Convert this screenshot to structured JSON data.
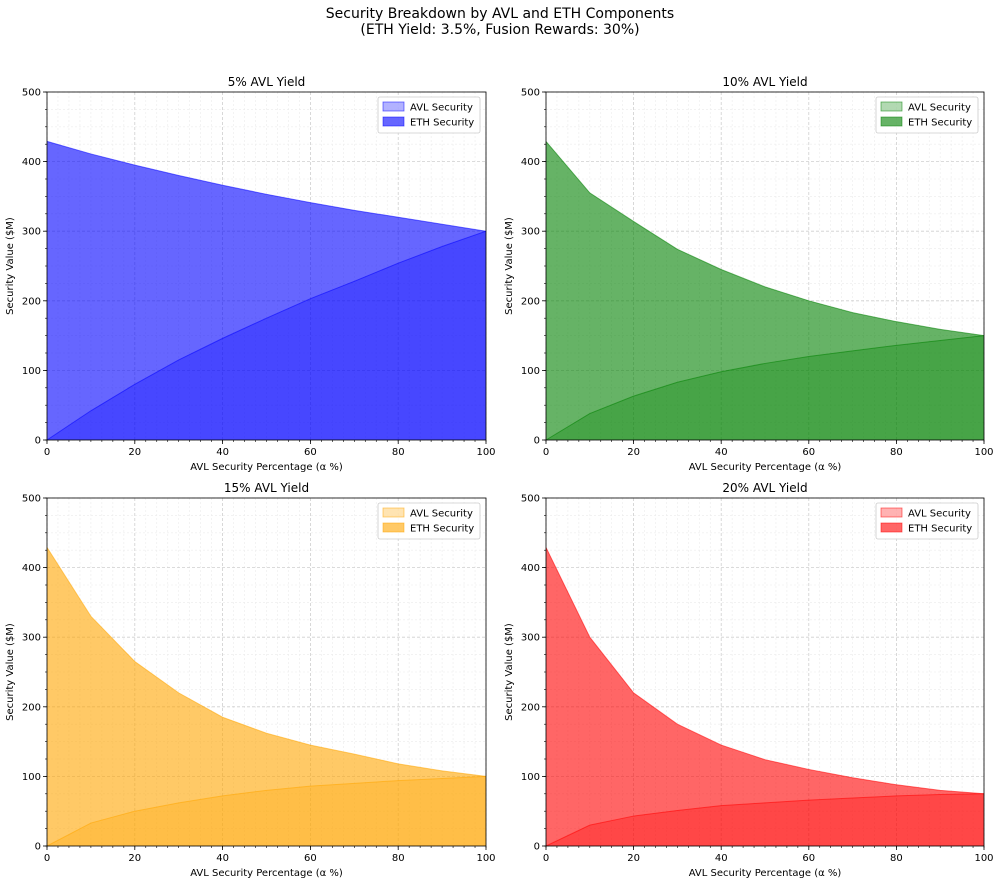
{
  "figure": {
    "title_line1": "Security Breakdown by AVL and ETH Components",
    "title_line2": "(ETH Yield: 3.5%, Fusion Rewards: 30%)"
  },
  "chart_data": [
    {
      "type": "area",
      "title": "5% AVL Yield",
      "xlabel": "AVL Security Percentage (α %)",
      "ylabel": "Security Value ($M)",
      "xlim": [
        0,
        100
      ],
      "ylim": [
        0,
        500
      ],
      "xticks": [
        0,
        20,
        40,
        60,
        80,
        100
      ],
      "yticks": [
        0,
        100,
        200,
        300,
        400,
        500
      ],
      "grid": true,
      "legend_position": "top-right",
      "stacked": false,
      "x": [
        0,
        10,
        20,
        30,
        40,
        50,
        60,
        70,
        80,
        90,
        100
      ],
      "series": [
        {
          "name": "AVL Security",
          "color": "#0000ff",
          "opacity": 0.3,
          "values": [
            0,
            42,
            80,
            115,
            146,
            175,
            203,
            228,
            254,
            278,
            300
          ]
        },
        {
          "name": "ETH Security",
          "color": "#0000ff",
          "opacity": 0.6,
          "values": [
            429,
            411,
            395,
            380,
            366,
            353,
            341,
            330,
            320,
            310,
            300
          ]
        }
      ]
    },
    {
      "type": "area",
      "title": "10% AVL Yield",
      "xlabel": "AVL Security Percentage (α %)",
      "ylabel": "Security Value ($M)",
      "xlim": [
        0,
        100
      ],
      "ylim": [
        0,
        500
      ],
      "xticks": [
        0,
        20,
        40,
        60,
        80,
        100
      ],
      "yticks": [
        0,
        100,
        200,
        300,
        400,
        500
      ],
      "grid": true,
      "legend_position": "top-right",
      "stacked": false,
      "x": [
        0,
        10,
        20,
        30,
        40,
        50,
        60,
        70,
        80,
        90,
        100
      ],
      "series": [
        {
          "name": "AVL Security",
          "color": "#008000",
          "opacity": 0.3,
          "values": [
            0,
            38,
            63,
            83,
            98,
            110,
            120,
            128,
            136,
            143,
            150
          ]
        },
        {
          "name": "ETH Security",
          "color": "#008000",
          "opacity": 0.6,
          "values": [
            429,
            355,
            314,
            274,
            245,
            220,
            200,
            183,
            170,
            159,
            150
          ]
        }
      ]
    },
    {
      "type": "area",
      "title": "15% AVL Yield",
      "xlabel": "AVL Security Percentage (α %)",
      "ylabel": "Security Value ($M)",
      "xlim": [
        0,
        100
      ],
      "ylim": [
        0,
        500
      ],
      "xticks": [
        0,
        20,
        40,
        60,
        80,
        100
      ],
      "yticks": [
        0,
        100,
        200,
        300,
        400,
        500
      ],
      "grid": true,
      "legend_position": "top-right",
      "stacked": false,
      "x": [
        0,
        10,
        20,
        30,
        40,
        50,
        60,
        70,
        80,
        90,
        100
      ],
      "series": [
        {
          "name": "AVL Security",
          "color": "#ffa500",
          "opacity": 0.3,
          "values": [
            0,
            33,
            50,
            62,
            72,
            80,
            86,
            90,
            94,
            97,
            100
          ]
        },
        {
          "name": "ETH Security",
          "color": "#ffa500",
          "opacity": 0.6,
          "values": [
            429,
            330,
            265,
            220,
            185,
            162,
            145,
            132,
            118,
            108,
            100
          ]
        }
      ]
    },
    {
      "type": "area",
      "title": "20% AVL Yield",
      "xlabel": "AVL Security Percentage (α %)",
      "ylabel": "Security Value ($M)",
      "xlim": [
        0,
        100
      ],
      "ylim": [
        0,
        500
      ],
      "xticks": [
        0,
        20,
        40,
        60,
        80,
        100
      ],
      "yticks": [
        0,
        100,
        200,
        300,
        400,
        500
      ],
      "grid": true,
      "legend_position": "top-right",
      "stacked": false,
      "x": [
        0,
        10,
        20,
        30,
        40,
        50,
        60,
        70,
        80,
        90,
        100
      ],
      "series": [
        {
          "name": "AVL Security",
          "color": "#ff0000",
          "opacity": 0.3,
          "values": [
            0,
            30,
            43,
            51,
            58,
            62,
            66,
            69,
            72,
            74,
            75
          ]
        },
        {
          "name": "ETH Security",
          "color": "#ff0000",
          "opacity": 0.6,
          "values": [
            429,
            300,
            220,
            175,
            145,
            124,
            110,
            98,
            88,
            80,
            75
          ]
        }
      ]
    }
  ]
}
